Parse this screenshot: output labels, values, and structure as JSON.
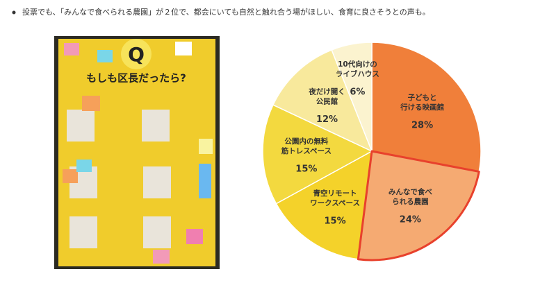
{
  "bullet": "投票でも、「みんなで食べられる農園」が２位で、都会にいても自然と触れ合う場がほしい、食育に良さそうとの声も。",
  "photo": {
    "letter": "Q",
    "headline": "もしも区長だったら?"
  },
  "chart_data": {
    "type": "pie",
    "categories": [
      "子どもと\n行ける映画館",
      "みんなで食べ\nられる農園",
      "青空リモート\nワークスペース",
      "公園内の無料\n筋トレスペース",
      "夜だけ開く\n公民館",
      "10代向けの\nライブハウス"
    ],
    "values": [
      28,
      24,
      15,
      15,
      12,
      6
    ],
    "value_labels": [
      "28%",
      "24%",
      "15%",
      "15%",
      "12%",
      "6%"
    ],
    "colors": [
      "#f07f3a",
      "#f5aa72",
      "#f4d22a",
      "#f3d93f",
      "#f8e99c",
      "#fbf3cf"
    ],
    "highlight": 1,
    "highlight_color": "#e8412c"
  }
}
